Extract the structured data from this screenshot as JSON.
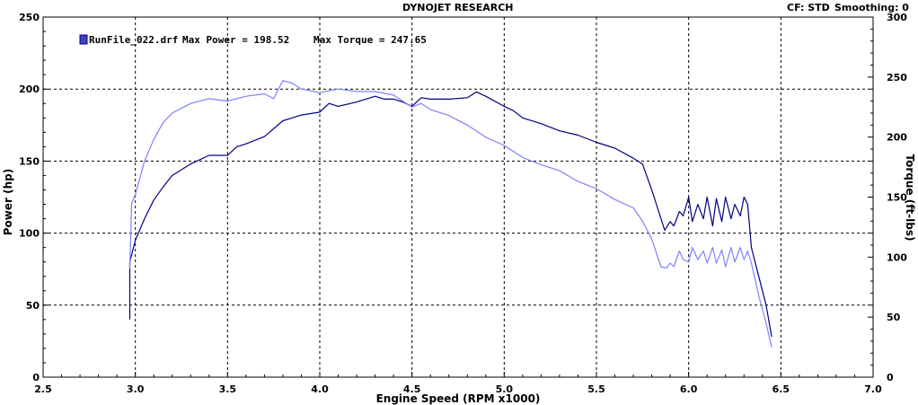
{
  "header": {
    "title": "DYNOJET RESEARCH",
    "cf": "CF: STD",
    "smoothing": "Smoothing: 0"
  },
  "legend": {
    "file": "RunFile_022.drf",
    "max_power_label": "Max Power = 198.52",
    "max_torque_label": "Max Torque = 247.65"
  },
  "colors": {
    "power": "#000080",
    "torque": "#8080ff"
  },
  "chart_data": {
    "type": "line",
    "title": "DYNOJET RESEARCH",
    "xlabel": "Engine Speed (RPM x1000)",
    "ylabel": "Power (hp)",
    "y2label": "Torque (ft-lbs)",
    "xlim": [
      2.5,
      7.0
    ],
    "ylim": [
      0,
      250
    ],
    "y2lim": [
      0,
      300
    ],
    "xticks": [
      "2.5",
      "3.0",
      "3.5",
      "4.0",
      "4.5",
      "5.0",
      "5.5",
      "6.0",
      "6.5",
      "7.0"
    ],
    "yticks": [
      "0",
      "50",
      "100",
      "150",
      "200",
      "250"
    ],
    "y2ticks": [
      "0",
      "50",
      "100",
      "150",
      "200",
      "250",
      "300"
    ],
    "grid": true,
    "legend_position": "top-left",
    "series": [
      {
        "name": "RunFile_022.drf",
        "axis": "left",
        "x": [
          2.97,
          2.97,
          3.0,
          3.05,
          3.1,
          3.15,
          3.2,
          3.3,
          3.4,
          3.5,
          3.55,
          3.6,
          3.7,
          3.8,
          3.85,
          3.9,
          4.0,
          4.05,
          4.1,
          4.2,
          4.3,
          4.35,
          4.4,
          4.45,
          4.5,
          4.55,
          4.6,
          4.7,
          4.8,
          4.85,
          4.9,
          5.0,
          5.05,
          5.1,
          5.2,
          5.3,
          5.4,
          5.5,
          5.6,
          5.7,
          5.75,
          5.8,
          5.85,
          5.87,
          5.9,
          5.92,
          5.95,
          5.97,
          6.0,
          6.02,
          6.05,
          6.08,
          6.1,
          6.13,
          6.15,
          6.18,
          6.2,
          6.23,
          6.25,
          6.28,
          6.3,
          6.32,
          6.34,
          6.38,
          6.42,
          6.45
        ],
        "y": [
          40,
          80,
          95,
          110,
          123,
          132,
          140,
          148,
          154,
          154,
          160,
          162,
          167,
          178,
          180,
          182,
          184,
          190,
          188,
          191,
          195,
          193,
          193,
          191,
          188,
          194,
          193,
          193,
          194,
          198,
          195,
          188,
          185,
          180,
          176,
          171,
          168,
          163,
          159,
          152,
          148,
          130,
          110,
          102,
          108,
          105,
          115,
          112,
          125,
          108,
          120,
          110,
          125,
          105,
          124,
          108,
          125,
          110,
          120,
          112,
          125,
          120,
          90,
          70,
          50,
          28
        ]
      },
      {
        "name": "",
        "axis": "right",
        "x": [
          2.97,
          2.98,
          3.0,
          3.05,
          3.1,
          3.15,
          3.2,
          3.3,
          3.4,
          3.5,
          3.6,
          3.7,
          3.75,
          3.8,
          3.85,
          3.9,
          4.0,
          4.1,
          4.2,
          4.3,
          4.4,
          4.5,
          4.55,
          4.6,
          4.7,
          4.8,
          4.9,
          5.0,
          5.1,
          5.2,
          5.3,
          5.4,
          5.5,
          5.6,
          5.7,
          5.75,
          5.8,
          5.85,
          5.88,
          5.9,
          5.92,
          5.95,
          5.97,
          6.0,
          6.02,
          6.05,
          6.08,
          6.1,
          6.13,
          6.15,
          6.18,
          6.2,
          6.23,
          6.25,
          6.28,
          6.3,
          6.32,
          6.34,
          6.38,
          6.42,
          6.45
        ],
        "y": [
          90,
          145,
          152,
          180,
          198,
          212,
          220,
          228,
          232,
          230,
          234,
          236,
          232,
          247,
          245,
          240,
          237,
          240,
          238,
          238,
          235,
          225,
          228,
          223,
          218,
          210,
          200,
          193,
          183,
          177,
          172,
          163,
          157,
          148,
          141,
          130,
          115,
          92,
          91,
          95,
          92,
          105,
          98,
          96,
          108,
          98,
          105,
          95,
          108,
          95,
          106,
          92,
          108,
          96,
          108,
          98,
          105,
          95,
          68,
          45,
          25
        ]
      }
    ]
  }
}
